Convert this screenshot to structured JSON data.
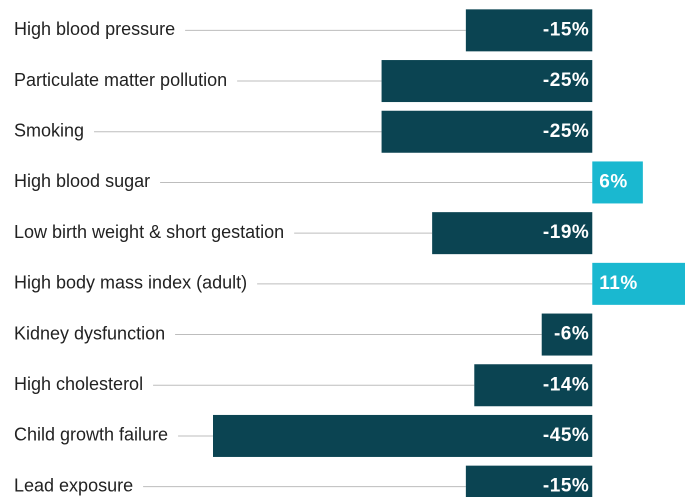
{
  "chart_data": {
    "type": "hbar",
    "categories": [
      "High blood pressure",
      "Particulate matter pollution",
      "Smoking",
      "High blood sugar",
      "Low birth weight & short gestation",
      "High body mass index (adult)",
      "Kidney dysfunction",
      "High cholesterol",
      "Child growth failure",
      "Lead exposure"
    ],
    "values": [
      -15,
      -25,
      -25,
      6,
      -19,
      11,
      -6,
      -14,
      -45,
      -15
    ],
    "value_labels": [
      "-15%",
      "-25%",
      "-25%",
      "6%",
      "-19%",
      "11%",
      "-6%",
      "-14%",
      "-45%",
      "-15%"
    ],
    "xlim": [
      -45,
      11
    ],
    "negative_color": "#0b4452",
    "positive_color": "#1ab8d0"
  }
}
